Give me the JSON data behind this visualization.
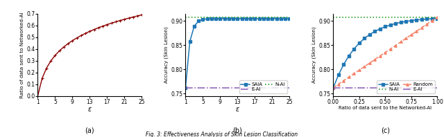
{
  "subplot_a": {
    "xlabel": "ε",
    "ylabel": "Ratio of data sent to Networked-AI",
    "label": "(a)",
    "color": "#8B0000",
    "xlim": [
      1,
      25
    ],
    "ylim": [
      0.0,
      0.7
    ],
    "xticks": [
      1,
      5,
      9,
      13,
      17,
      21,
      25
    ],
    "yticks": [
      0.0,
      0.1,
      0.2,
      0.3,
      0.4,
      0.5,
      0.6,
      0.7
    ]
  },
  "subplot_b": {
    "xlabel": "ε",
    "ylabel": "Accuracy (Skin Lesion)",
    "label": "(b)",
    "xlim": [
      1,
      25
    ],
    "ylim": [
      0.745,
      0.915
    ],
    "xticks": [
      1,
      5,
      9,
      13,
      17,
      21,
      25
    ],
    "yticks": [
      0.75,
      0.8,
      0.85,
      0.9
    ],
    "saia_color": "#1f77b4",
    "nai_color": "#2ca02c",
    "eai_color": "#9467bd",
    "nai_value": 0.908,
    "eai_value": 0.762
  },
  "subplot_c": {
    "xlabel": "Ratio of data sent to the Networked-AI",
    "ylabel": "Accuracy (Skin Lesion)",
    "label": "(c)",
    "xlim": [
      0.0,
      1.0
    ],
    "ylim": [
      0.745,
      0.915
    ],
    "xticks": [
      0.0,
      0.25,
      0.5,
      0.75,
      1.0
    ],
    "yticks": [
      0.75,
      0.8,
      0.85,
      0.9
    ],
    "saia_color": "#1f77b4",
    "random_color": "#f4846a",
    "nai_color": "#2ca02c",
    "eai_color": "#9467bd",
    "nai_value": 0.908,
    "eai_value": 0.762
  },
  "caption": "Fig. 3: Effectiveness Analysis of Skin Lesion Classification"
}
